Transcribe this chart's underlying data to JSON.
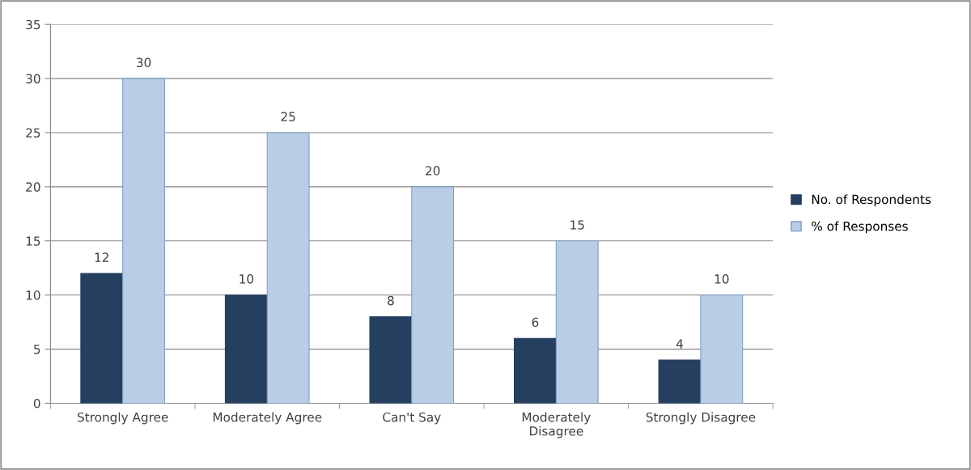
{
  "chart_data": {
    "type": "bar",
    "categories": [
      "Strongly Agree",
      "Moderately Agree",
      "Can't Say",
      "Moderately Disagree",
      "Strongly Disagree"
    ],
    "series": [
      {
        "name": "No. of Respondents",
        "color": "#243f60",
        "values": [
          12,
          10,
          8,
          6,
          4
        ]
      },
      {
        "name": "% of Responses",
        "color": "#b9cde5",
        "values": [
          30,
          25,
          20,
          15,
          10
        ]
      }
    ],
    "ylim": [
      0,
      35
    ],
    "yticks": [
      0,
      5,
      10,
      15,
      20,
      25,
      30,
      35
    ],
    "grid": "y",
    "legend": "right",
    "data_labels": true
  }
}
